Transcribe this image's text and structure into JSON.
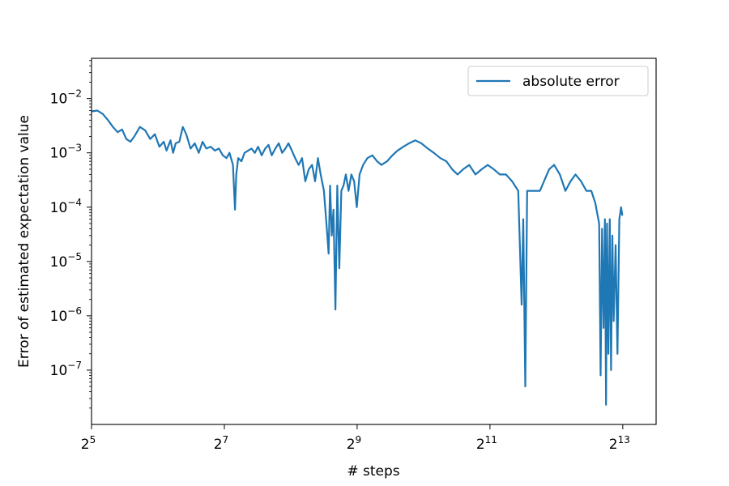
{
  "chart_data": {
    "type": "line",
    "title": "",
    "xlabel": "# steps",
    "ylabel": "Error of estimated expectation value",
    "x_scale": "log2",
    "y_scale": "log10",
    "xlim": [
      32,
      11600
    ],
    "ylim": [
      1e-08,
      0.055
    ],
    "grid": false,
    "legend_position": "top-right",
    "x_ticks": [
      {
        "value": 32,
        "base": "2",
        "exp": "5"
      },
      {
        "value": 128,
        "base": "2",
        "exp": "7"
      },
      {
        "value": 512,
        "base": "2",
        "exp": "9"
      },
      {
        "value": 2048,
        "base": "2",
        "exp": "11"
      },
      {
        "value": 8192,
        "base": "2",
        "exp": "13"
      }
    ],
    "y_ticks": [
      {
        "value": 1e-07,
        "base": "10",
        "exp": "−7"
      },
      {
        "value": 1e-06,
        "base": "10",
        "exp": "−6"
      },
      {
        "value": 1e-05,
        "base": "10",
        "exp": "−5"
      },
      {
        "value": 0.0001,
        "base": "10",
        "exp": "−4"
      },
      {
        "value": 0.001,
        "base": "10",
        "exp": "−3"
      },
      {
        "value": 0.01,
        "base": "10",
        "exp": "−2"
      }
    ],
    "series": [
      {
        "name": "absolute error",
        "color": "#1f77b4",
        "points": [
          [
            32,
            0.0058
          ],
          [
            34,
            0.006
          ],
          [
            36,
            0.0052
          ],
          [
            38,
            0.004
          ],
          [
            40,
            0.003
          ],
          [
            42,
            0.0024
          ],
          [
            44,
            0.0027
          ],
          [
            46,
            0.0018
          ],
          [
            48,
            0.0016
          ],
          [
            50,
            0.002
          ],
          [
            53,
            0.003
          ],
          [
            56,
            0.0026
          ],
          [
            59,
            0.0018
          ],
          [
            62,
            0.0022
          ],
          [
            65,
            0.0013
          ],
          [
            68,
            0.0016
          ],
          [
            70,
            0.0011
          ],
          [
            73,
            0.0017
          ],
          [
            75,
            0.001
          ],
          [
            77,
            0.0015
          ],
          [
            80,
            0.0016
          ],
          [
            83,
            0.003
          ],
          [
            86,
            0.0022
          ],
          [
            90,
            0.0012
          ],
          [
            94,
            0.0015
          ],
          [
            98,
            0.001
          ],
          [
            102,
            0.0016
          ],
          [
            106,
            0.0012
          ],
          [
            111,
            0.0013
          ],
          [
            116,
            0.0011
          ],
          [
            121,
            0.0012
          ],
          [
            126,
            0.0009
          ],
          [
            131,
            0.0008
          ],
          [
            135,
            0.001
          ],
          [
            140,
            0.0006
          ],
          [
            143,
            9e-05
          ],
          [
            145,
            0.0004
          ],
          [
            148,
            0.0008
          ],
          [
            153,
            0.0007
          ],
          [
            158,
            0.001
          ],
          [
            164,
            0.0011
          ],
          [
            170,
            0.0012
          ],
          [
            176,
            0.001
          ],
          [
            182,
            0.0013
          ],
          [
            189,
            0.0009
          ],
          [
            196,
            0.0012
          ],
          [
            203,
            0.0014
          ],
          [
            210,
            0.0009
          ],
          [
            218,
            0.0012
          ],
          [
            226,
            0.0015
          ],
          [
            234,
            0.001
          ],
          [
            242,
            0.0012
          ],
          [
            250,
            0.0015
          ],
          [
            259,
            0.0011
          ],
          [
            268,
            0.0008
          ],
          [
            278,
            0.0006
          ],
          [
            288,
            0.0008
          ],
          [
            298,
            0.0003
          ],
          [
            309,
            0.0005
          ],
          [
            320,
            0.0006
          ],
          [
            330,
            0.0003
          ],
          [
            340,
            0.0008
          ],
          [
            350,
            0.0004
          ],
          [
            362,
            0.0002
          ],
          [
            373,
            4e-05
          ],
          [
            380,
            1.4e-05
          ],
          [
            386,
            0.00025
          ],
          [
            393,
            3e-05
          ],
          [
            400,
            9e-05
          ],
          [
            408,
            1.3e-06
          ],
          [
            416,
            0.00025
          ],
          [
            425,
            7.5e-06
          ],
          [
            434,
            0.0002
          ],
          [
            444,
            0.00025
          ],
          [
            455,
            0.0004
          ],
          [
            468,
            0.0002
          ],
          [
            482,
            0.0004
          ],
          [
            496,
            0.0003
          ],
          [
            510,
            0.0001
          ],
          [
            525,
            0.0004
          ],
          [
            545,
            0.0006
          ],
          [
            570,
            0.0008
          ],
          [
            600,
            0.0009
          ],
          [
            630,
            0.0007
          ],
          [
            660,
            0.0006
          ],
          [
            700,
            0.0007
          ],
          [
            740,
            0.0009
          ],
          [
            780,
            0.0011
          ],
          [
            830,
            0.0013
          ],
          [
            880,
            0.0015
          ],
          [
            940,
            0.0017
          ],
          [
            1000,
            0.0015
          ],
          [
            1070,
            0.0012
          ],
          [
            1140,
            0.001
          ],
          [
            1220,
            0.0008
          ],
          [
            1300,
            0.0007
          ],
          [
            1380,
            0.0005
          ],
          [
            1460,
            0.0004
          ],
          [
            1550,
            0.0005
          ],
          [
            1650,
            0.0006
          ],
          [
            1760,
            0.0004
          ],
          [
            1880,
            0.0005
          ],
          [
            2000,
            0.0006
          ],
          [
            2130,
            0.0005
          ],
          [
            2270,
            0.0004
          ],
          [
            2420,
            0.0004
          ],
          [
            2580,
            0.0003
          ],
          [
            2750,
            0.0002
          ],
          [
            2850,
            1.6e-06
          ],
          [
            2900,
            6e-05
          ],
          [
            2960,
            5e-08
          ],
          [
            3020,
            0.0002
          ],
          [
            3150,
            0.0002
          ],
          [
            3300,
            0.0002
          ],
          [
            3450,
            0.0002
          ],
          [
            3600,
            0.0003
          ],
          [
            3800,
            0.0005
          ],
          [
            4000,
            0.0006
          ],
          [
            4250,
            0.0004
          ],
          [
            4500,
            0.0002
          ],
          [
            4750,
            0.0003
          ],
          [
            5000,
            0.0004
          ],
          [
            5300,
            0.0003
          ],
          [
            5600,
            0.0002
          ],
          [
            5900,
            0.0002
          ],
          [
            6150,
            0.00012
          ],
          [
            6400,
            5e-05
          ],
          [
            6500,
            8e-08
          ],
          [
            6600,
            4e-05
          ],
          [
            6700,
            6e-07
          ],
          [
            6800,
            6e-05
          ],
          [
            6880,
            2.3e-08
          ],
          [
            6950,
            5e-05
          ],
          [
            7050,
            2e-07
          ],
          [
            7150,
            6e-05
          ],
          [
            7250,
            1e-07
          ],
          [
            7350,
            3e-05
          ],
          [
            7450,
            8e-07
          ],
          [
            7600,
            2e-05
          ],
          [
            7750,
            2e-07
          ],
          [
            7900,
            6e-05
          ],
          [
            8050,
            0.0001
          ],
          [
            8150,
            7e-05
          ]
        ]
      }
    ]
  }
}
